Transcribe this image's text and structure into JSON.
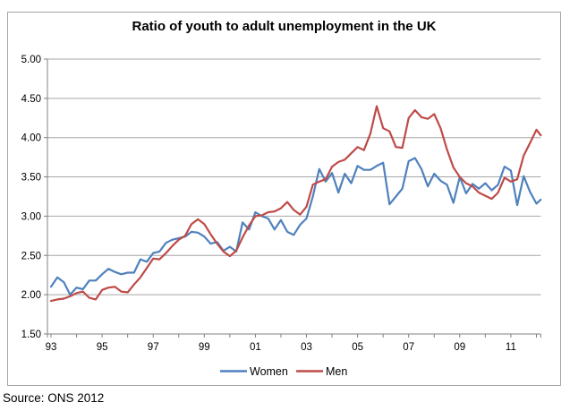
{
  "title": "Ratio of youth to adult unemployment in the UK",
  "source_note": "Source: ONS 2012",
  "legend": [
    {
      "label": "Women",
      "color": "#4f81bd"
    },
    {
      "label": "Men",
      "color": "#be4b48"
    }
  ],
  "colors": {
    "gridline": "#a6a6a6",
    "axis": "#808080",
    "frame_border": "#a6a6a6",
    "text": "#000000",
    "women_line": "#4f81bd",
    "men_line": "#be4b48"
  },
  "axes": {
    "y_tick_labels": [
      "5.00",
      "4.50",
      "4.00",
      "3.50",
      "3.00",
      "2.50",
      "2.00",
      "1.50"
    ],
    "x_tick_labels": [
      "93",
      "95",
      "97",
      "99",
      "01",
      "03",
      "05",
      "07",
      "09",
      "11"
    ],
    "x_label_years": [
      1993,
      1995,
      1997,
      1999,
      2001,
      2003,
      2005,
      2007,
      2009,
      2011
    ]
  },
  "chart_data": {
    "type": "line",
    "title": "Ratio of youth to adult unemployment in the UK",
    "xlabel": "",
    "ylabel": "",
    "ylim": [
      1.5,
      5.0
    ],
    "xlim": [
      1993,
      2012.17
    ],
    "grid": "horizontal",
    "legend_position": "bottom",
    "x_unit": "year (quarterly samples)",
    "x": [
      1993.0,
      1993.25,
      1993.5,
      1993.75,
      1994.0,
      1994.25,
      1994.5,
      1994.75,
      1995.0,
      1995.25,
      1995.5,
      1995.75,
      1996.0,
      1996.25,
      1996.5,
      1996.75,
      1997.0,
      1997.25,
      1997.5,
      1997.75,
      1998.0,
      1998.25,
      1998.5,
      1998.75,
      1999.0,
      1999.25,
      1999.5,
      1999.75,
      2000.0,
      2000.25,
      2000.5,
      2000.75,
      2001.0,
      2001.25,
      2001.5,
      2001.75,
      2002.0,
      2002.25,
      2002.5,
      2002.75,
      2003.0,
      2003.25,
      2003.5,
      2003.75,
      2004.0,
      2004.25,
      2004.5,
      2004.75,
      2005.0,
      2005.25,
      2005.5,
      2005.75,
      2006.0,
      2006.25,
      2006.5,
      2006.75,
      2007.0,
      2007.25,
      2007.5,
      2007.75,
      2008.0,
      2008.25,
      2008.5,
      2008.75,
      2009.0,
      2009.25,
      2009.5,
      2009.75,
      2010.0,
      2010.25,
      2010.5,
      2010.75,
      2011.0,
      2011.25,
      2011.5,
      2011.75,
      2012.0,
      2012.17
    ],
    "series": [
      {
        "name": "Women",
        "color": "#4f81bd",
        "values": [
          2.1,
          2.22,
          2.16,
          2.0,
          2.09,
          2.07,
          2.18,
          2.18,
          2.26,
          2.33,
          2.29,
          2.26,
          2.28,
          2.28,
          2.45,
          2.42,
          2.53,
          2.55,
          2.66,
          2.7,
          2.72,
          2.74,
          2.8,
          2.79,
          2.74,
          2.65,
          2.67,
          2.56,
          2.61,
          2.55,
          2.92,
          2.83,
          3.05,
          3.0,
          2.97,
          2.83,
          2.95,
          2.8,
          2.76,
          2.89,
          2.97,
          3.25,
          3.6,
          3.44,
          3.55,
          3.3,
          3.54,
          3.42,
          3.64,
          3.59,
          3.59,
          3.64,
          3.68,
          3.15,
          3.25,
          3.35,
          3.7,
          3.74,
          3.6,
          3.38,
          3.54,
          3.45,
          3.4,
          3.17,
          3.5,
          3.29,
          3.41,
          3.35,
          3.42,
          3.33,
          3.4,
          3.63,
          3.58,
          3.14,
          3.51,
          3.31,
          3.16,
          3.21
        ]
      },
      {
        "name": "Men",
        "color": "#be4b48",
        "values": [
          1.92,
          1.94,
          1.95,
          1.98,
          2.02,
          2.04,
          1.96,
          1.94,
          2.06,
          2.09,
          2.1,
          2.04,
          2.03,
          2.13,
          2.22,
          2.34,
          2.46,
          2.45,
          2.53,
          2.62,
          2.7,
          2.75,
          2.9,
          2.96,
          2.9,
          2.77,
          2.65,
          2.55,
          2.49,
          2.56,
          2.73,
          2.88,
          3.0,
          3.01,
          3.05,
          3.06,
          3.1,
          3.18,
          3.08,
          3.02,
          3.12,
          3.4,
          3.44,
          3.47,
          3.63,
          3.69,
          3.72,
          3.8,
          3.88,
          3.84,
          4.05,
          4.4,
          4.12,
          4.08,
          3.88,
          3.87,
          4.25,
          4.35,
          4.26,
          4.24,
          4.3,
          4.12,
          3.85,
          3.62,
          3.5,
          3.42,
          3.38,
          3.3,
          3.26,
          3.22,
          3.3,
          3.49,
          3.44,
          3.47,
          3.77,
          3.93,
          4.1,
          4.03
        ]
      }
    ]
  }
}
